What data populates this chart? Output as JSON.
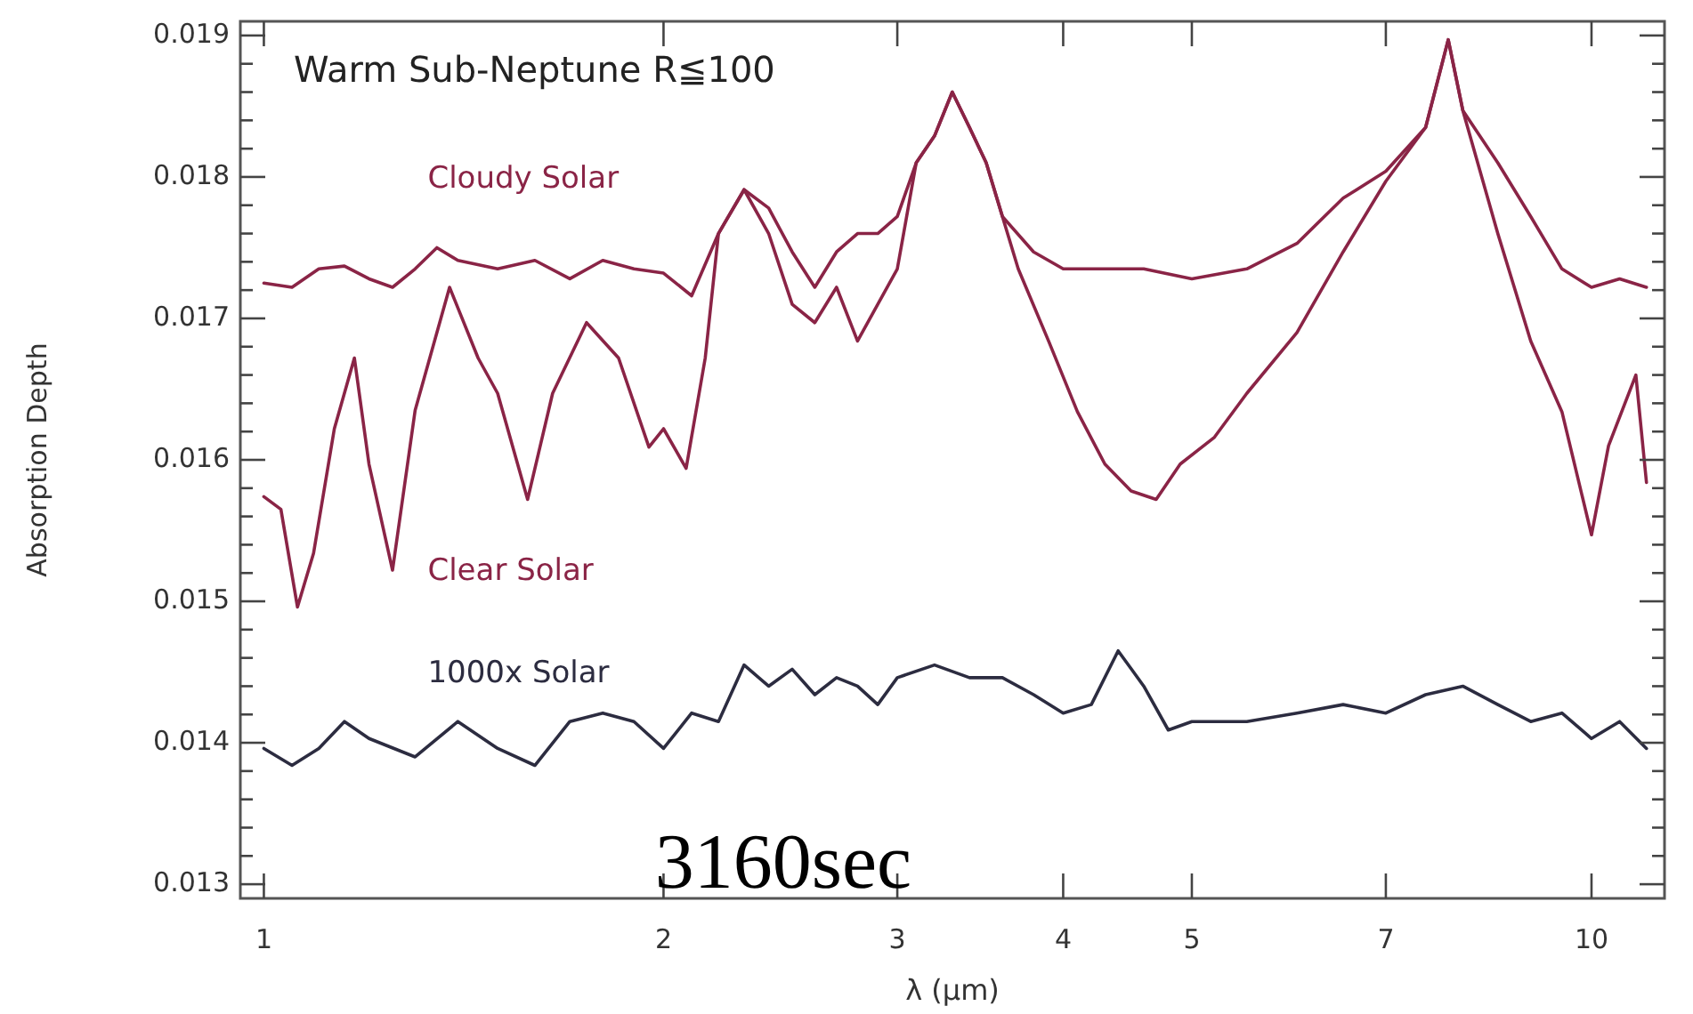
{
  "chart_data": {
    "type": "line",
    "title": "Warm Sub-Neptune R≦100",
    "xlabel": "λ (μm)",
    "ylabel": "Absorption Depth",
    "annotations": [
      "3160sec"
    ],
    "log": "x",
    "xlim": [
      0.96,
      11.35
    ],
    "ylim": [
      0.0129,
      0.0191
    ],
    "xticks": [
      1,
      2,
      3,
      4,
      5,
      7,
      10
    ],
    "yticks": [
      {
        "value": 0.013,
        "label": "0.013"
      },
      {
        "value": 0.0132,
        "label": null
      },
      {
        "value": 0.0134,
        "label": null
      },
      {
        "value": 0.0136,
        "label": null
      },
      {
        "value": 0.0138,
        "label": null
      },
      {
        "value": 0.014,
        "label": "0.014"
      },
      {
        "value": 0.0142,
        "label": null
      },
      {
        "value": 0.0144,
        "label": null
      },
      {
        "value": 0.0146,
        "label": null
      },
      {
        "value": 0.0148,
        "label": null
      },
      {
        "value": 0.015,
        "label": "0.015"
      },
      {
        "value": 0.0152,
        "label": null
      },
      {
        "value": 0.0154,
        "label": null
      },
      {
        "value": 0.0156,
        "label": null
      },
      {
        "value": 0.0158,
        "label": null
      },
      {
        "value": 0.016,
        "label": "0.016"
      },
      {
        "value": 0.0162,
        "label": null
      },
      {
        "value": 0.0164,
        "label": null
      },
      {
        "value": 0.0166,
        "label": null
      },
      {
        "value": 0.0168,
        "label": null
      },
      {
        "value": 0.017,
        "label": "0.017"
      },
      {
        "value": 0.0172,
        "label": null
      },
      {
        "value": 0.0174,
        "label": null
      },
      {
        "value": 0.0176,
        "label": null
      },
      {
        "value": 0.0178,
        "label": null
      },
      {
        "value": 0.018,
        "label": "0.018"
      },
      {
        "value": 0.0182,
        "label": null
      },
      {
        "value": 0.0184,
        "label": null
      },
      {
        "value": 0.0186,
        "label": null
      },
      {
        "value": 0.0188,
        "label": null
      },
      {
        "value": 0.019,
        "label": "0.019"
      }
    ],
    "grid": false,
    "marker": "none",
    "line_style": "solid",
    "series": [
      {
        "name": "Cloudy Solar",
        "color": "#8a2446",
        "x": [
          1.0,
          1.05,
          1.1,
          1.15,
          1.2,
          1.25,
          1.3,
          1.35,
          1.4,
          1.5,
          1.6,
          1.7,
          1.8,
          1.9,
          2.0,
          2.1,
          2.2,
          2.3,
          2.4,
          2.5,
          2.6,
          2.7,
          2.8,
          2.9,
          3.0,
          3.1,
          3.2,
          3.3,
          3.4,
          3.5,
          3.6,
          3.8,
          4.0,
          4.3,
          4.6,
          5.0,
          5.5,
          6.0,
          6.5,
          7.0,
          7.5,
          7.8,
          8.0,
          8.5,
          9.0,
          9.5,
          10.0,
          10.5,
          11.0
        ],
        "values": [
          0.01725,
          0.01722,
          0.01735,
          0.01737,
          0.01728,
          0.01722,
          0.01735,
          0.0175,
          0.01741,
          0.01735,
          0.01741,
          0.01728,
          0.01741,
          0.01735,
          0.01732,
          0.01716,
          0.0176,
          0.01791,
          0.01778,
          0.01747,
          0.01722,
          0.01747,
          0.0176,
          0.0176,
          0.01772,
          0.0181,
          0.01829,
          0.0186,
          0.01835,
          0.0181,
          0.01772,
          0.01747,
          0.01735,
          0.01735,
          0.01735,
          0.01728,
          0.01735,
          0.01753,
          0.01785,
          0.01804,
          0.01835,
          0.01897,
          0.01847,
          0.0181,
          0.01772,
          0.01735,
          0.01722,
          0.01728,
          0.01722
        ]
      },
      {
        "name": "Clear Solar",
        "color": "#8a2446",
        "x": [
          1.0,
          1.03,
          1.06,
          1.09,
          1.13,
          1.17,
          1.2,
          1.25,
          1.3,
          1.38,
          1.45,
          1.5,
          1.58,
          1.65,
          1.75,
          1.85,
          1.95,
          2.0,
          2.08,
          2.15,
          2.2,
          2.3,
          2.4,
          2.5,
          2.6,
          2.7,
          2.8,
          2.9,
          3.0,
          3.1,
          3.2,
          3.3,
          3.4,
          3.5,
          3.6,
          3.7,
          3.9,
          4.1,
          4.3,
          4.5,
          4.7,
          4.9,
          5.2,
          5.5,
          6.0,
          6.5,
          7.0,
          7.5,
          7.8,
          8.0,
          8.5,
          9.0,
          9.5,
          10.0,
          10.3,
          10.8,
          11.0
        ],
        "values": [
          0.01574,
          0.01565,
          0.01496,
          0.01534,
          0.01622,
          0.01672,
          0.01597,
          0.01522,
          0.01635,
          0.01722,
          0.01672,
          0.01647,
          0.01572,
          0.01647,
          0.01697,
          0.01672,
          0.01609,
          0.01622,
          0.01594,
          0.01672,
          0.0176,
          0.01791,
          0.0176,
          0.0171,
          0.01697,
          0.01722,
          0.01684,
          0.0171,
          0.01735,
          0.0181,
          0.01829,
          0.0186,
          0.01835,
          0.0181,
          0.01772,
          0.01735,
          0.01684,
          0.01634,
          0.01597,
          0.01578,
          0.01572,
          0.01597,
          0.01616,
          0.01647,
          0.0169,
          0.01747,
          0.01797,
          0.01835,
          0.01897,
          0.01847,
          0.0176,
          0.01684,
          0.01634,
          0.01547,
          0.0161,
          0.0166,
          0.01584
        ]
      },
      {
        "name": "1000x Solar",
        "color": "#2c2c40",
        "x": [
          1.0,
          1.05,
          1.1,
          1.15,
          1.2,
          1.3,
          1.4,
          1.5,
          1.6,
          1.7,
          1.8,
          1.9,
          2.0,
          2.1,
          2.2,
          2.3,
          2.4,
          2.5,
          2.6,
          2.7,
          2.8,
          2.9,
          3.0,
          3.2,
          3.4,
          3.6,
          3.8,
          4.0,
          4.2,
          4.4,
          4.6,
          4.8,
          5.0,
          5.5,
          6.0,
          6.5,
          7.0,
          7.5,
          8.0,
          8.5,
          9.0,
          9.5,
          10.0,
          10.5,
          11.0
        ],
        "values": [
          0.01396,
          0.01384,
          0.01396,
          0.01415,
          0.01403,
          0.0139,
          0.01415,
          0.01396,
          0.01384,
          0.01415,
          0.01421,
          0.01415,
          0.01396,
          0.01421,
          0.01415,
          0.01455,
          0.0144,
          0.01452,
          0.01434,
          0.01446,
          0.0144,
          0.01427,
          0.01446,
          0.01455,
          0.01446,
          0.01446,
          0.01434,
          0.01421,
          0.01427,
          0.01465,
          0.0144,
          0.01409,
          0.01415,
          0.01415,
          0.01421,
          0.01427,
          0.01421,
          0.01434,
          0.0144,
          0.01427,
          0.01415,
          0.01421,
          0.01403,
          0.01415,
          0.01396
        ]
      }
    ]
  }
}
